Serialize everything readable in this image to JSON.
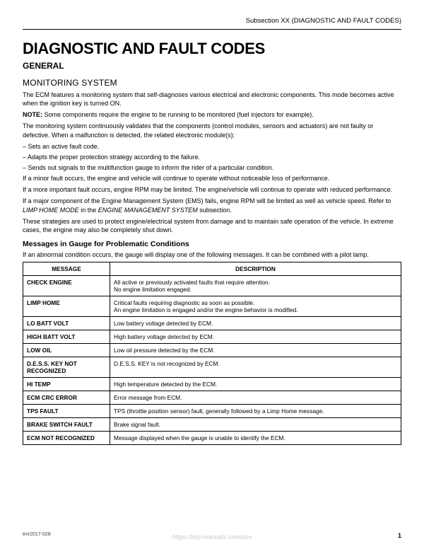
{
  "header": {
    "subsection": "Subsection XX (DIAGNOSTIC AND FAULT CODES)"
  },
  "title": "DIAGNOSTIC AND FAULT CODES",
  "subtitle": "GENERAL",
  "section": "MONITORING SYSTEM",
  "paragraphs": {
    "p1": "The ECM features a monitoring system that self-diagnoses various electrical and electronic components. This mode becomes active when the ignition key is turned ON.",
    "note_label": "NOTE:",
    "note_text": " Some components require the engine to be running to be monitored (fuel injectors for example).",
    "p2": "The monitoring system continuously validates that the components (control modules, sensors and actuators) are not faulty or defective.  When a malfunction is detected, the related electronic module(s):",
    "b1": "Sets an active fault code.",
    "b2": "Adapts the proper protection strategy according to the failure.",
    "b3": "Sends out signals to the multifunction gauge to inform the rider of a particular condition.",
    "p3": "If a minor fault occurs, the engine and vehicle will continue to operate without noticeable loss of performance.",
    "p4": "If a more important fault occurs, engine RPM may be limited.  The engine/vehicle will continue to operate with reduced performance.",
    "p5a": "If a major component of the Engine Management System (EMS) fails, engine RPM will be limited as well as vehicle speed.  Refer to ",
    "p5b": "LIMP HOME MODE",
    "p5c": " in the ",
    "p5d": "ENGINE MANAGEMENT SYSTEM",
    "p5e": " subsection.",
    "p6": "These strategies are used to protect engine/electrical system from damage and to maintain safe operation of the vehicle.  In extreme cases, the engine may also be completely shut down."
  },
  "messages": {
    "heading": "Messages in Gauge for Problematic Conditions",
    "intro": "If an abnormal condition occurs, the gauge will display one of the following messages.  It can be combined with a pilot lamp.",
    "col1": "MESSAGE",
    "col2": "DESCRIPTION",
    "rows": [
      {
        "msg": "CHECK ENGINE",
        "desc": "All active or previously activated faults that require attention.\nNo engine limitation engaged."
      },
      {
        "msg": "LIMP HOME",
        "desc": "Critical faults requiring diagnostic as soon as possible.\nAn engine limitation is engaged and/or the engine behavior is modified."
      },
      {
        "msg": "LO BATT VOLT",
        "desc": "Low battery voltage detected by ECM."
      },
      {
        "msg": "HIGH BATT VOLT",
        "desc": "High battery voltage detected by ECM."
      },
      {
        "msg": "LOW OIL",
        "desc": "Low oil pressure detected by the ECM."
      },
      {
        "msg": "D.E.S.S. KEY NOT RECOGNIZED",
        "desc": "D.E.S.S. KEY is not recognized by ECM."
      },
      {
        "msg": "HI TEMP",
        "desc": "High temperature detected by the ECM."
      },
      {
        "msg": "ECM CRC ERROR",
        "desc": "Error message from ECM."
      },
      {
        "msg": "TPS FAULT",
        "desc": "TPS (throttle position sensor) fault, generally followed by a Limp Home message."
      },
      {
        "msg": "BRAKE SWITCH FAULT",
        "desc": "Brake signal fault."
      },
      {
        "msg": "ECM NOT RECOGNIZED",
        "desc": "Message displayed when the gauge is unable to identify the ECM."
      }
    ]
  },
  "footer": {
    "docid": "tmr2017-028",
    "pageno": "1",
    "watermark": "https://brp-manuals.com/ssv"
  }
}
